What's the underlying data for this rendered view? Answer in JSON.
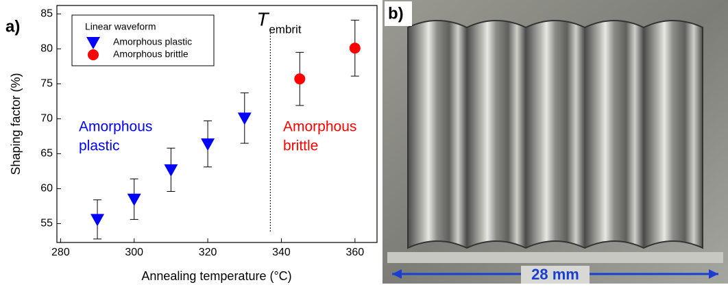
{
  "chart_data": {
    "type": "scatter",
    "panel_label": "a)",
    "x_label": "Annealing temperature (°C)",
    "y_label": "Shaping factor (%)",
    "xlim": [
      279,
      366
    ],
    "ylim": [
      52.3,
      86.2
    ],
    "xticks": [
      280,
      300,
      320,
      340,
      360
    ],
    "yticks": [
      55,
      60,
      65,
      70,
      75,
      80,
      85
    ],
    "legend_title": "Linear waveform",
    "series": [
      {
        "name": "Amorphous plastic",
        "color": "#0000ff",
        "marker": "triangle-down",
        "x": [
          290,
          300,
          310,
          320,
          330
        ],
        "values": [
          55.6,
          58.5,
          62.7,
          66.4,
          70.1
        ],
        "errors": [
          2.8,
          2.9,
          3.1,
          3.3,
          3.6
        ]
      },
      {
        "name": "Amorphous brittle",
        "color": "#ff0000",
        "marker": "circle",
        "x": [
          345,
          360
        ],
        "values": [
          75.7,
          80.1
        ],
        "errors": [
          3.8,
          4.0
        ]
      }
    ],
    "vline": {
      "x": 337,
      "text": "T",
      "subscript": "embrit"
    },
    "annotations": [
      "Amorphous",
      "plastic",
      "Amorphous",
      "brittle"
    ]
  },
  "photo": {
    "panel_label": "b)",
    "scale_bar": "28 mm"
  }
}
